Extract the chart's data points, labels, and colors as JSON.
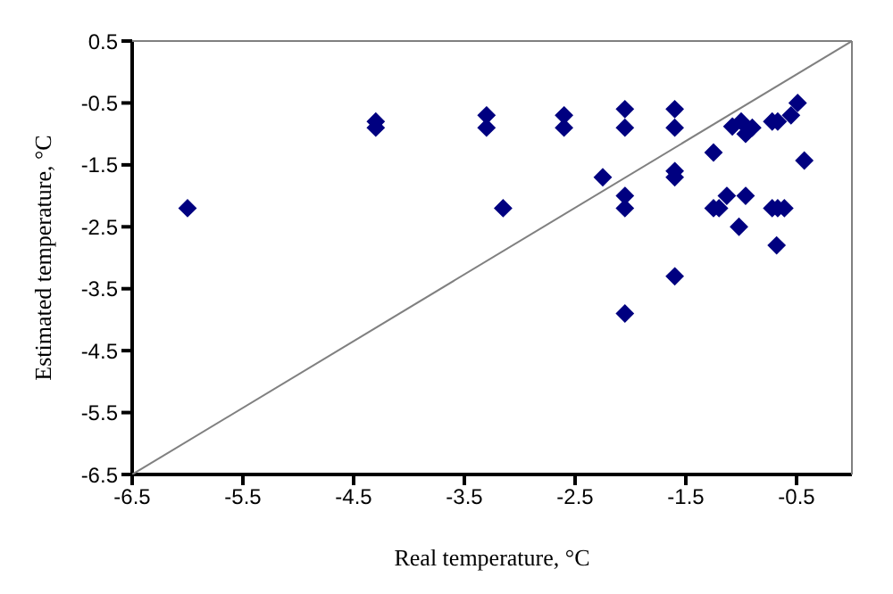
{
  "chart_data": {
    "type": "scatter",
    "xlabel": "Real temperature, °C",
    "ylabel": "Estimated temperature, °C",
    "xlim": [
      -6.5,
      0
    ],
    "xticks": [
      -6.5,
      -5.5,
      -4.5,
      -3.5,
      -2.5,
      -1.5,
      -0.5
    ],
    "ylim": [
      -6.5,
      0.5
    ],
    "yticks": [
      0.5,
      -0.5,
      -1.5,
      -2.5,
      -3.5,
      -4.5,
      -5.5,
      -6.5
    ],
    "grid": false,
    "series": [
      {
        "marker": "diamond",
        "color": "#000080",
        "x": [
          -6.0,
          -4.3,
          -4.3,
          -3.3,
          -3.3,
          -3.15,
          -2.6,
          -2.6,
          -2.25,
          -2.05,
          -2.05,
          -2.05,
          -2.05,
          -2.05,
          -1.6,
          -1.6,
          -1.6,
          -1.6,
          -1.6,
          -1.25,
          -1.25,
          -1.2,
          -1.13,
          -1.08,
          -1.0,
          -0.96,
          -0.9,
          -0.96,
          -1.02,
          -0.72,
          -0.67,
          -0.72,
          -0.67,
          -0.61,
          -0.68,
          -0.55,
          -0.49,
          -0.43
        ],
        "values": [
          -2.2,
          -0.8,
          -0.9,
          -0.7,
          -0.9,
          -2.2,
          -0.7,
          -0.9,
          -1.7,
          -0.6,
          -0.9,
          -2.0,
          -2.2,
          -3.9,
          -0.6,
          -0.9,
          -1.6,
          -1.7,
          -3.3,
          -1.3,
          -2.2,
          -2.2,
          -2.0,
          -0.88,
          -0.8,
          -1.0,
          -0.9,
          -2.0,
          -2.5,
          -0.8,
          -0.8,
          -2.2,
          -2.2,
          -2.2,
          -2.8,
          -0.7,
          -0.5,
          -1.43
        ]
      },
      {
        "type": "line",
        "marker": "none",
        "color": "#808080",
        "x": [
          -6.5,
          0
        ],
        "values": [
          -6.5,
          0.5
        ]
      }
    ]
  }
}
